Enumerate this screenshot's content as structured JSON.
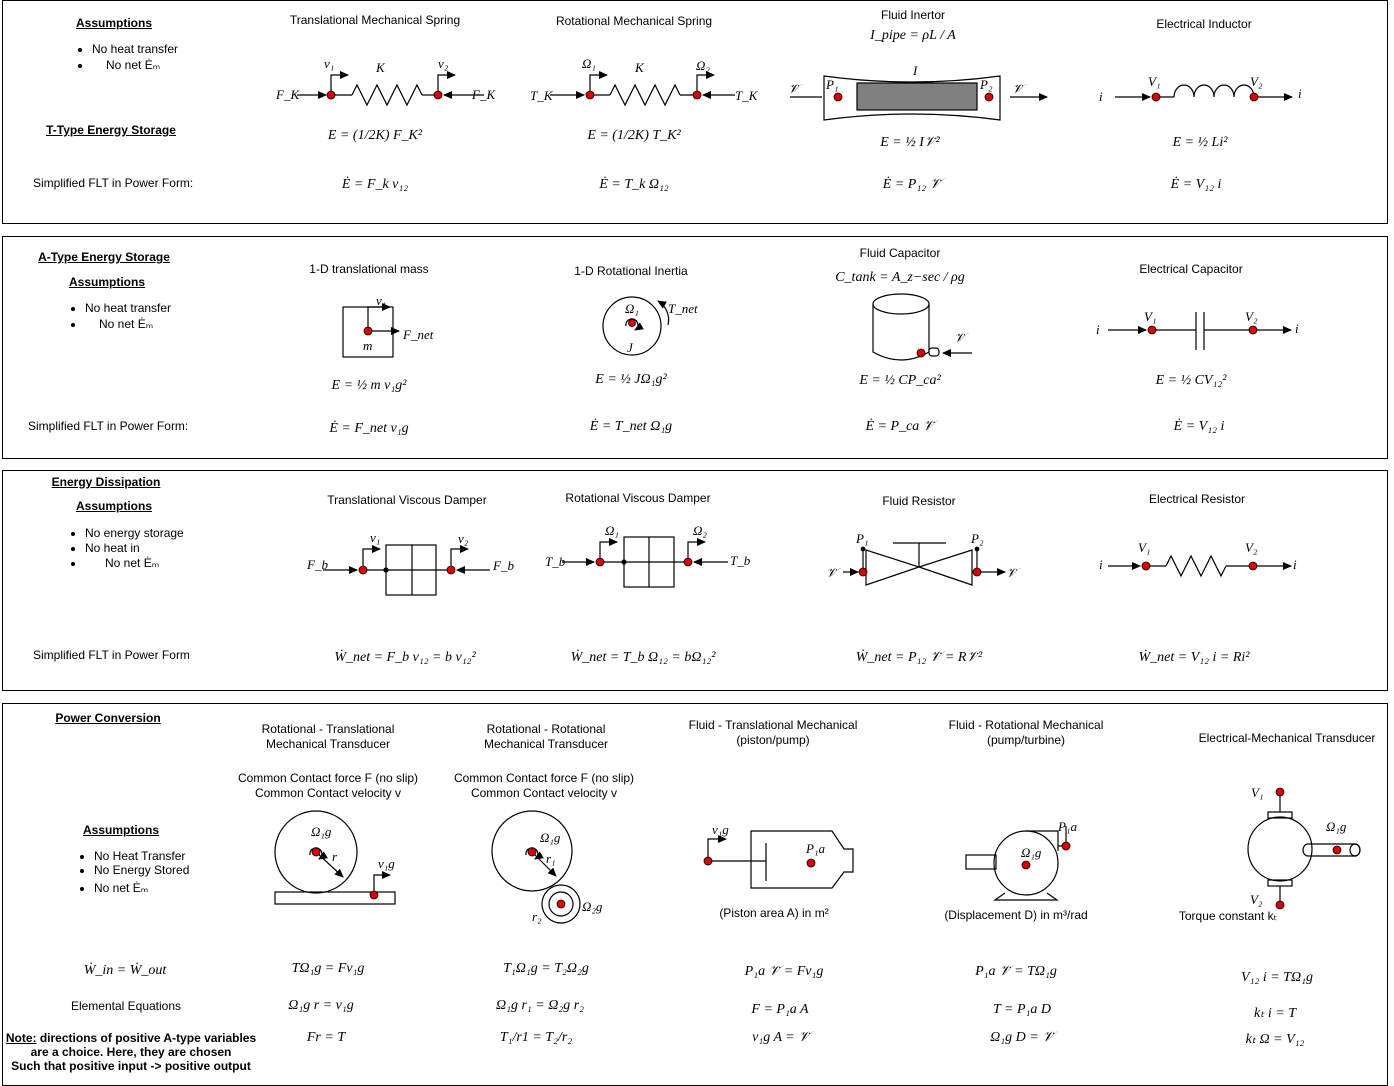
{
  "colors": {
    "node": "#dd0000",
    "fill": "#808080",
    "line": "#000000"
  },
  "panel1": {
    "assumptions_title": "Assumptions",
    "assumptions": [
      "No heat transfer",
      "No net Ėₘ"
    ],
    "title": "T-Type Energy Storage",
    "flt_label": "Simplified FLT in Power Form:",
    "cols": [
      {
        "title": "Translational Mechanical Spring",
        "lbl_a": "v₁",
        "lbl_b": "K",
        "lbl_c": "v₂",
        "lbl_in": "F_K",
        "lbl_out": "F_K",
        "eq_energy": "E = (1/2K) F_K²",
        "eq_power": "Ė = F_k v₁₂"
      },
      {
        "title": "Rotational Mechanical Spring",
        "lbl_a": "Ω₁",
        "lbl_b": "K",
        "lbl_c": "Ω₂",
        "lbl_in": "T_K",
        "lbl_out": "T_K",
        "eq_energy": "E = (1/2K) T_K²",
        "eq_power": "Ė = T_k Ω₁₂"
      },
      {
        "title": "Fluid Inertor",
        "formula": "I_pipe = ρL / A",
        "lbl_a": "P₁",
        "lbl_b": "I",
        "lbl_c": "P₂",
        "lbl_in": "𝒱̇",
        "lbl_out": "𝒱̇",
        "eq_energy": "E = ½ I𝒱̇²",
        "eq_power": "Ė = P₁₂ 𝒱̇"
      },
      {
        "title": "Electrical Inductor",
        "lbl_a": "V₁",
        "lbl_c": "V₂",
        "lbl_in": "i",
        "lbl_out": "i",
        "eq_energy": "E = ½ Li²",
        "eq_power": "Ė = V₁₂ i"
      }
    ]
  },
  "panel2": {
    "title": "A-Type Energy Storage",
    "assumptions_title": "Assumptions",
    "assumptions": [
      "No heat transfer",
      "No net Ėₘ"
    ],
    "flt_label": "Simplified FLT in Power Form:",
    "cols": [
      {
        "title": "1-D translational mass",
        "lbl_a": "v₁",
        "lbl_b": "m",
        "lbl_c": "F_net",
        "eq_energy": "E = ½ m v₁g²",
        "eq_power": "Ė = F_net v₁g"
      },
      {
        "title": "1-D Rotational Inertia",
        "lbl_a": "Ω₁",
        "lbl_b": "J",
        "lbl_c": "T_net",
        "eq_energy": "E = ½ JΩ₁g²",
        "eq_power": "Ė = T_net Ω₁g"
      },
      {
        "title": "Fluid Capacitor",
        "formula": "C_tank = A_z−sec / ρg",
        "lbl_in": "𝒱̇",
        "eq_energy": "E = ½ CP_ca²",
        "eq_power": "Ė = P_ca 𝒱̇"
      },
      {
        "title": "Electrical Capacitor",
        "lbl_a": "V₁",
        "lbl_c": "V₂",
        "lbl_in": "i",
        "lbl_out": "i",
        "eq_energy": "E = ½ CV₁₂²",
        "eq_power": "Ė = V₁₂ i"
      }
    ]
  },
  "panel3": {
    "title": "Energy Dissipation",
    "assumptions_title": "Assumptions",
    "assumptions": [
      "No energy storage",
      "No heat in",
      "No net Ėₘ"
    ],
    "flt_label": "Simplified FLT in Power Form",
    "cols": [
      {
        "title": "Translational Viscous Damper",
        "lbl_a": "v₁",
        "lbl_c": "v₂",
        "lbl_in": "F_b",
        "lbl_out": "F_b",
        "eq_power": "Ẇ_net = F_b v₁₂ = b v₁₂²"
      },
      {
        "title": "Rotational Viscous Damper",
        "lbl_a": "Ω₁",
        "lbl_c": "Ω₂",
        "lbl_in": "T_b",
        "lbl_out": "T_b",
        "eq_power": "Ẇ_net = T_b Ω₁₂ = bΩ₁₂²"
      },
      {
        "title": "Fluid Resistor",
        "lbl_a": "P₁",
        "lbl_c": "P₂",
        "lbl_in": "𝒱̇",
        "lbl_out": "𝒱̇",
        "eq_power": "Ẇ_net = P₁₂ 𝒱̇ = R𝒱̇²"
      },
      {
        "title": "Electrical Resistor",
        "lbl_a": "V₁",
        "lbl_c": "V₂",
        "lbl_in": "i",
        "lbl_out": "i",
        "eq_power": "Ẇ_net = V₁₂ i = Ri²"
      }
    ]
  },
  "panel4": {
    "title": "Power Conversion",
    "assumptions_title": "Assumptions",
    "assumptions": [
      "No Heat Transfer",
      "No Energy Stored",
      "No net Ėₘ"
    ],
    "eq_balance": "Ẇ_in = Ẇ_out",
    "elemental_label": "Elemental Equations",
    "note_bold": "Note:",
    "note_rest": " directions of positive A-type variables",
    "note_line2": "are a choice. Here, they are chosen",
    "note_line3": "Such that positive input -> positive output",
    "cols": [
      {
        "title1": "Rotational - Translational",
        "title2": "Mechanical Transducer",
        "sub1": "Common Contact force F (no slip)",
        "sub2": "Common Contact velocity v",
        "lbl_a": "Ω₁g",
        "lbl_b": "r",
        "lbl_c": "v₁g",
        "eq1": "TΩ₁g = Fv₁g",
        "eq2": "Ω₁g r = v₁g",
        "eq3": "Fr = T"
      },
      {
        "title1": "Rotational - Rotational",
        "title2": "Mechanical Transducer",
        "sub1": "Common Contact force F (no slip)",
        "sub2": "Common Contact velocity v",
        "lbl_a": "Ω₁g",
        "lbl_b": "r₁",
        "lbl_c": "Ω₂g",
        "lbl_d": "r₂",
        "eq1": "T₁Ω₁g = T₂Ω₂g",
        "eq2": "Ω₁g r₁ = Ω₂g r₂",
        "eq3": "T₁/r1 = T₂/r₂"
      },
      {
        "title1": "Fluid - Translational Mechanical",
        "title2": "(piston/pump)",
        "lbl_a": "v₁g",
        "lbl_b": "P₁a",
        "caption": "(Piston area A) in  m²",
        "eq1": "P₁a 𝒱̇ = Fv₁g",
        "eq2": "F = P₁a A",
        "eq3": "v₁g A = 𝒱̇"
      },
      {
        "title1": "Fluid - Rotational Mechanical",
        "title2": "(pump/turbine)",
        "lbl_a": "P₁a",
        "lbl_b": "Ω₁g",
        "caption": "(Displacement D) in  m³/rad",
        "eq1": "P₁a 𝒱̇ = TΩ₁g",
        "eq2": "T = P₁a D",
        "eq3": "Ω₁g D = 𝒱̇"
      },
      {
        "title1": "Electrical-Mechanical Transducer",
        "lbl_a": "V₁",
        "lbl_b": "Ω₁g",
        "lbl_c": "V₂",
        "caption": "Torque constant  kₜ",
        "eq1": "V₁₂ i = TΩ₁g",
        "eq2": "kₜ i = T",
        "eq3": "kₜ Ω = V₁₂"
      }
    ]
  }
}
